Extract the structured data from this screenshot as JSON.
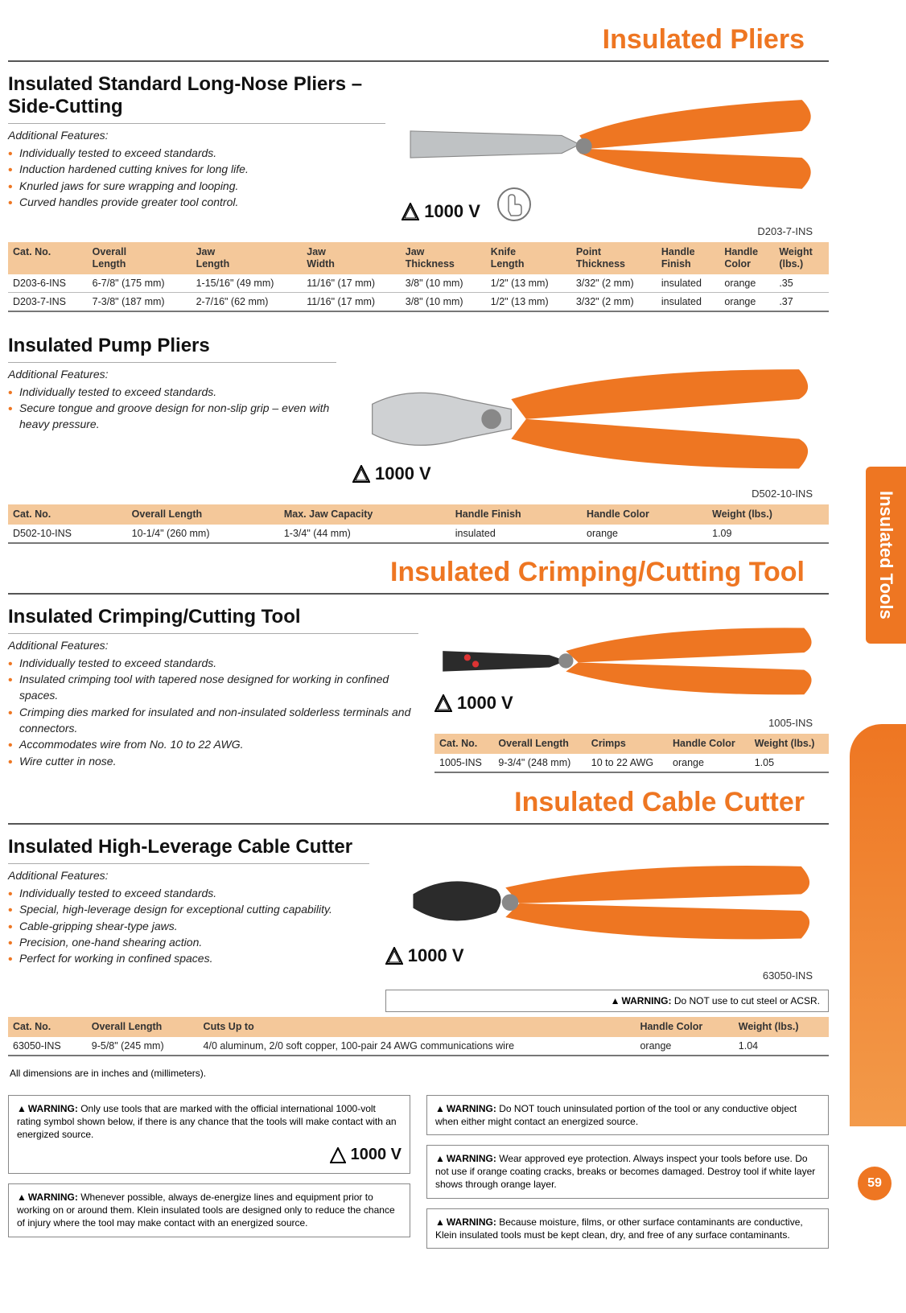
{
  "colors": {
    "accent": "#ee7622",
    "hdr_bg": "#f4c89a",
    "text": "#222"
  },
  "sidebar": {
    "tab": "Insulated Tools",
    "page_num": "59"
  },
  "titles": {
    "pliers": "Insulated Pliers",
    "crimp": "Insulated Crimping/Cutting Tool",
    "cable": "Insulated Cable Cutter"
  },
  "volt_label": "1000 V",
  "note_dim": "All dimensions are in inches and (millimeters).",
  "section1": {
    "title": "Insulated Standard Long-Nose Pliers – Side-Cutting",
    "features_label": "Additional Features:",
    "features": [
      "Individually tested to exceed standards.",
      "Induction hardened cutting knives for long life.",
      "Knurled jaws for sure wrapping and looping.",
      "Curved handles provide greater tool control."
    ],
    "prod_label": "D203-7-INS",
    "table": {
      "cols": [
        "Cat. No.",
        "Overall\nLength",
        "Jaw\nLength",
        "Jaw\nWidth",
        "Jaw\nThickness",
        "Knife\nLength",
        "Point\nThickness",
        "Handle\nFinish",
        "Handle\nColor",
        "Weight\n(lbs.)"
      ],
      "rows": [
        [
          "D203-6-INS",
          "6-7/8\" (175 mm)",
          "1-15/16\" (49 mm)",
          "11/16\" (17 mm)",
          "3/8\" (10 mm)",
          "1/2\" (13 mm)",
          "3/32\" (2 mm)",
          "insulated",
          "orange",
          ".35"
        ],
        [
          "D203-7-INS",
          "7-3/8\" (187 mm)",
          "2-7/16\" (62 mm)",
          "11/16\" (17 mm)",
          "3/8\" (10 mm)",
          "1/2\" (13 mm)",
          "3/32\" (2 mm)",
          "insulated",
          "orange",
          ".37"
        ]
      ]
    }
  },
  "section2": {
    "title": "Insulated Pump Pliers",
    "features_label": "Additional Features:",
    "features": [
      "Individually tested to exceed standards.",
      "Secure tongue and groove design for non-slip grip – even with heavy pressure."
    ],
    "prod_label": "D502-10-INS",
    "table": {
      "cols": [
        "Cat. No.",
        "Overall Length",
        "Max. Jaw Capacity",
        "Handle Finish",
        "Handle Color",
        "Weight (lbs.)"
      ],
      "rows": [
        [
          "D502-10-INS",
          "10-1/4\" (260 mm)",
          "1-3/4\" (44 mm)",
          "insulated",
          "orange",
          "1.09"
        ]
      ]
    }
  },
  "section3": {
    "title": "Insulated Crimping/Cutting Tool",
    "features_label": "Additional Features:",
    "features": [
      "Individually tested to exceed standards.",
      "Insulated crimping tool with tapered nose designed for working in confined spaces.",
      "Crimping dies marked for insulated and non-insulated solderless terminals and connectors.",
      "Accommodates wire from No. 10 to 22 AWG.",
      "Wire cutter in nose."
    ],
    "prod_label": "1005-INS",
    "table": {
      "cols": [
        "Cat. No.",
        "Overall Length",
        "Crimps",
        "Handle Color",
        "Weight (lbs.)"
      ],
      "rows": [
        [
          "1005-INS",
          "9-3/4\" (248 mm)",
          "10 to 22 AWG",
          "orange",
          "1.05"
        ]
      ]
    }
  },
  "section4": {
    "title": "Insulated High-Leverage Cable Cutter",
    "features_label": "Additional Features:",
    "features": [
      "Individually tested to exceed standards.",
      "Special, high-leverage design for exceptional cutting capability.",
      "Cable-gripping shear-type jaws.",
      "Precision, one-hand shearing action.",
      "Perfect for working in confined spaces."
    ],
    "prod_label": "63050-INS",
    "warn_inline": "Do NOT use to cut steel or ACSR.",
    "table": {
      "cols": [
        "Cat. No.",
        "Overall Length",
        "Cuts Up to",
        "Handle Color",
        "Weight (lbs.)"
      ],
      "rows": [
        [
          "63050-INS",
          "9-5/8\" (245 mm)",
          "4/0 aluminum, 2/0 soft copper, 100-pair 24 AWG communications wire",
          "orange",
          "1.04"
        ]
      ]
    }
  },
  "warnings": {
    "left": [
      "Only use tools that are marked with the official international 1000-volt rating symbol shown below, if there is any chance that the tools will make contact with an energized source.",
      "Whenever possible, always de-energize lines and equipment prior to working on or around them. Klein insulated tools are designed only to reduce the chance of injury where the tool may make contact with an energized source."
    ],
    "right": [
      "Do NOT touch uninsulated portion of the tool or any conductive object when either might contact an energized source.",
      "Wear approved eye protection. Always inspect your tools before use. Do not use if orange coating cracks, breaks or becomes damaged. Destroy tool if white layer shows through orange layer.",
      "Because moisture, films, or other surface contaminants are conductive, Klein insulated tools must be kept clean, dry, and free of any surface contaminants."
    ],
    "label": "WARNING:"
  }
}
